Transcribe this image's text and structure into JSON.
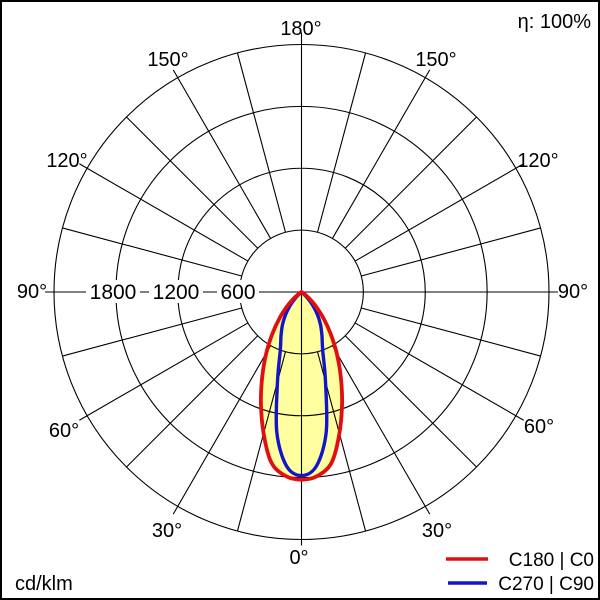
{
  "efficiency_label": "η: 100%",
  "unit_label": "cd/klm",
  "legend": {
    "items": [
      {
        "label": "C180 | C0",
        "color": "#e01010"
      },
      {
        "label": "C270 | C90",
        "color": "#1414c8"
      }
    ]
  },
  "polar": {
    "angle_labels": [
      {
        "pos": "top",
        "text": "180°"
      },
      {
        "pos": "upper-left",
        "text": "150°"
      },
      {
        "pos": "upper-right",
        "text": "150°"
      },
      {
        "pos": "left-upper",
        "text": "120°"
      },
      {
        "pos": "right-upper",
        "text": "120°"
      },
      {
        "pos": "left",
        "text": "90°"
      },
      {
        "pos": "right",
        "text": "90°"
      },
      {
        "pos": "left-lower",
        "text": "60°"
      },
      {
        "pos": "right-lower",
        "text": "60°"
      },
      {
        "pos": "lower-left",
        "text": "30°"
      },
      {
        "pos": "lower-right",
        "text": "30°"
      },
      {
        "pos": "bottom",
        "text": "0°"
      }
    ],
    "radial_labels": [
      {
        "text": "1800"
      },
      {
        "text": "1200"
      },
      {
        "text": "600"
      }
    ]
  },
  "chart_data": {
    "type": "polar",
    "kind": "photometric-luminous-intensity-distribution",
    "title": "",
    "unit": "cd/klm",
    "efficiency_eta": "100%",
    "zero_direction": "down",
    "symmetric": true,
    "angle_grid_step_deg": 15,
    "angle_label_step_deg": 30,
    "radial_ticks": [
      600,
      1200,
      1800
    ],
    "radial_max": 2400,
    "fill": "#ffffa0",
    "series": [
      {
        "name": "C180 | C0",
        "color": "#e01010",
        "gamma_deg": [
          0,
          5,
          10,
          15,
          20,
          25,
          30,
          35,
          40,
          45,
          50,
          55,
          60
        ],
        "values": [
          1820,
          1790,
          1680,
          1420,
          1150,
          900,
          680,
          490,
          330,
          200,
          100,
          40,
          0
        ]
      },
      {
        "name": "C270 | C90",
        "color": "#1414c8",
        "gamma_deg": [
          0,
          5,
          10,
          15,
          20,
          25,
          30,
          35,
          40,
          45,
          50
        ],
        "values": [
          1780,
          1690,
          1380,
          900,
          600,
          470,
          370,
          270,
          170,
          80,
          0
        ]
      }
    ]
  }
}
